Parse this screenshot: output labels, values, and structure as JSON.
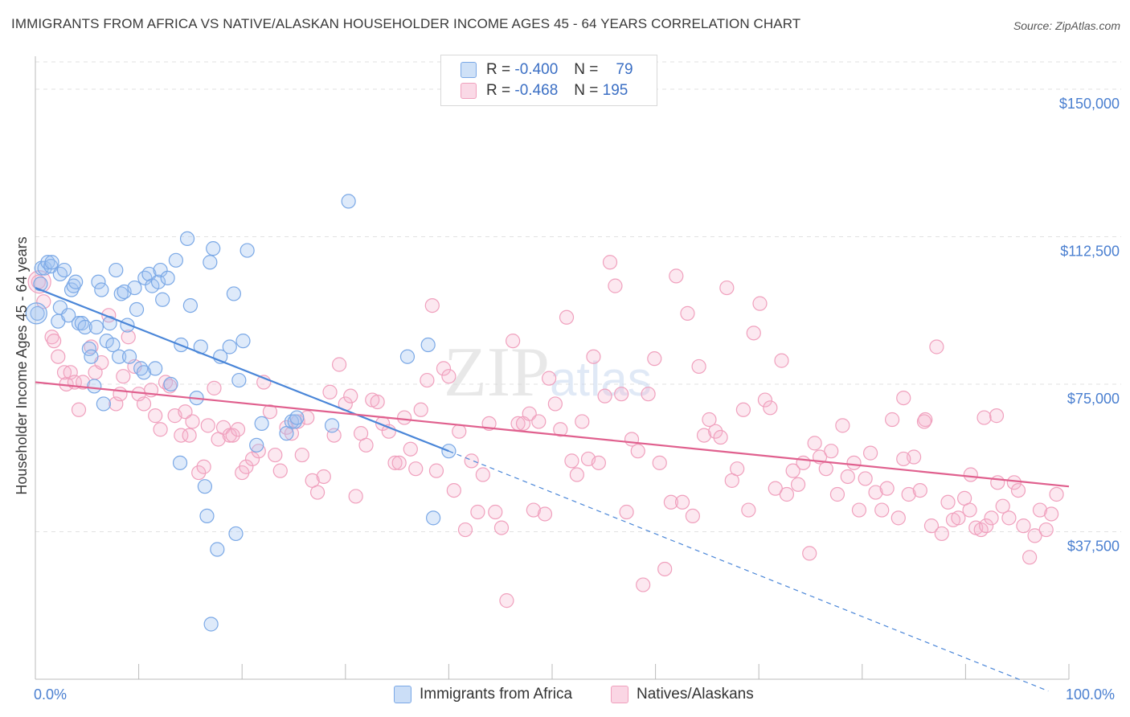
{
  "title": "IMMIGRANTS FROM AFRICA VS NATIVE/ALASKAN HOUSEHOLDER INCOME AGES 45 - 64 YEARS CORRELATION CHART",
  "source": "Source: ZipAtlas.com",
  "watermark": "ZIPatlas",
  "legend": {
    "rows": [
      {
        "r_label": "R =",
        "r_value": "-0.400",
        "n_label": "N =",
        "n_value": "79"
      },
      {
        "r_label": "R =",
        "r_value": "-0.468",
        "n_label": "N =",
        "n_value": "195"
      }
    ]
  },
  "colors": {
    "blue": "#4a86d8",
    "blue_fill": "rgba(160,195,240,0.35)",
    "blue_stroke": "#7aa8e6",
    "pink": "#e0608e",
    "pink_fill": "rgba(245,180,205,0.30)",
    "pink_stroke": "#f0a0bd",
    "tick_text": "#4a7fd0",
    "grid": "#e2e2e2"
  },
  "chart_data": {
    "type": "scatter",
    "title": "IMMIGRANTS FROM AFRICA VS NATIVE/ALASKAN HOUSEHOLDER INCOME AGES 45 - 64 YEARS CORRELATION CHART",
    "xlabel": "",
    "ylabel": "Householder Income Ages 45 - 64 years",
    "xlim": [
      0,
      100
    ],
    "ylim": [
      0,
      160000
    ],
    "x_tick_labels": [
      "0.0%",
      "100.0%"
    ],
    "y_ticks": [
      37500,
      75000,
      112500,
      150000
    ],
    "y_tick_labels": [
      "$37,500",
      "$75,000",
      "$112,500",
      "$150,000"
    ],
    "grid": true,
    "legend_position": "top-center",
    "series": [
      {
        "name": "Immigrants from Africa",
        "color": "#4a86d8",
        "trend": {
          "x0": 0,
          "y0": 99500,
          "x1": 40,
          "y1": 58000,
          "dashed_to_x": 98,
          "dashed_to_y": -3000
        },
        "points": [
          [
            0.2,
            93000
          ],
          [
            0.5,
            100500
          ],
          [
            0.6,
            104500
          ],
          [
            0.9,
            104500
          ],
          [
            1.2,
            106000
          ],
          [
            1.5,
            105000
          ],
          [
            1.6,
            106000
          ],
          [
            2.2,
            91000
          ],
          [
            2.4,
            94500
          ],
          [
            2.4,
            103000
          ],
          [
            2.8,
            104000
          ],
          [
            3.2,
            92500
          ],
          [
            3.5,
            99000
          ],
          [
            3.7,
            100000
          ],
          [
            3.9,
            101000
          ],
          [
            4.2,
            90500
          ],
          [
            4.5,
            90500
          ],
          [
            4.8,
            89500
          ],
          [
            5.2,
            84000
          ],
          [
            5.4,
            82000
          ],
          [
            5.7,
            74500
          ],
          [
            5.9,
            89500
          ],
          [
            6.1,
            101000
          ],
          [
            6.4,
            99000
          ],
          [
            6.6,
            70000
          ],
          [
            6.9,
            86000
          ],
          [
            7.2,
            90500
          ],
          [
            7.5,
            85000
          ],
          [
            7.8,
            104000
          ],
          [
            8.1,
            82000
          ],
          [
            8.3,
            98000
          ],
          [
            8.6,
            98500
          ],
          [
            8.9,
            90000
          ],
          [
            9.1,
            82000
          ],
          [
            9.6,
            99500
          ],
          [
            9.8,
            94000
          ],
          [
            10.2,
            79000
          ],
          [
            10.5,
            78000
          ],
          [
            10.6,
            102000
          ],
          [
            11.0,
            103000
          ],
          [
            11.3,
            100000
          ],
          [
            11.6,
            79000
          ],
          [
            11.9,
            101000
          ],
          [
            12.1,
            104000
          ],
          [
            12.3,
            96500
          ],
          [
            12.8,
            102000
          ],
          [
            13.1,
            75000
          ],
          [
            13.6,
            106500
          ],
          [
            14.0,
            55000
          ],
          [
            14.1,
            85000
          ],
          [
            14.7,
            112000
          ],
          [
            15.0,
            95000
          ],
          [
            15.6,
            71500
          ],
          [
            16.0,
            84500
          ],
          [
            16.4,
            49000
          ],
          [
            16.6,
            41500
          ],
          [
            16.9,
            106000
          ],
          [
            17.0,
            14000
          ],
          [
            17.2,
            109500
          ],
          [
            17.6,
            33000
          ],
          [
            17.9,
            82000
          ],
          [
            18.8,
            84500
          ],
          [
            19.2,
            98000
          ],
          [
            19.4,
            37000
          ],
          [
            19.7,
            76000
          ],
          [
            20.1,
            86000
          ],
          [
            20.5,
            109000
          ],
          [
            21.4,
            59500
          ],
          [
            21.9,
            65000
          ],
          [
            24.3,
            62500
          ],
          [
            24.8,
            65500
          ],
          [
            25.1,
            65500
          ],
          [
            25.3,
            66500
          ],
          [
            28.7,
            64500
          ],
          [
            30.3,
            121500
          ],
          [
            36.0,
            82000
          ],
          [
            38.0,
            85000
          ],
          [
            38.5,
            41000
          ],
          [
            40.0,
            58000
          ]
        ]
      },
      {
        "name": "Natives/Alaskans",
        "color": "#e0608e",
        "trend": {
          "x0": 0,
          "y0": 75500,
          "x1": 100,
          "y1": 49000
        },
        "points": [
          [
            0.3,
            101000
          ],
          [
            0.8,
            96000
          ],
          [
            1.6,
            87000
          ],
          [
            1.8,
            86000
          ],
          [
            2.2,
            82000
          ],
          [
            2.8,
            78000
          ],
          [
            3.0,
            75000
          ],
          [
            3.4,
            78000
          ],
          [
            3.8,
            75500
          ],
          [
            4.2,
            68500
          ],
          [
            4.6,
            75500
          ],
          [
            5.4,
            84500
          ],
          [
            5.8,
            78000
          ],
          [
            6.4,
            80500
          ],
          [
            7.1,
            92500
          ],
          [
            7.8,
            70000
          ],
          [
            8.2,
            72500
          ],
          [
            8.5,
            77000
          ],
          [
            9.0,
            87000
          ],
          [
            9.6,
            79500
          ],
          [
            10.0,
            72500
          ],
          [
            10.5,
            70000
          ],
          [
            11.2,
            73500
          ],
          [
            11.6,
            67000
          ],
          [
            12.1,
            63500
          ],
          [
            12.6,
            75500
          ],
          [
            13.0,
            74500
          ],
          [
            13.5,
            67000
          ],
          [
            14.1,
            62000
          ],
          [
            14.5,
            68000
          ],
          [
            14.9,
            62000
          ],
          [
            15.2,
            65500
          ],
          [
            15.8,
            52500
          ],
          [
            16.3,
            54000
          ],
          [
            16.7,
            64500
          ],
          [
            17.3,
            74000
          ],
          [
            17.7,
            61000
          ],
          [
            18.2,
            64000
          ],
          [
            18.8,
            62000
          ],
          [
            19.1,
            62000
          ],
          [
            19.6,
            63500
          ],
          [
            20.0,
            52500
          ],
          [
            20.4,
            54000
          ],
          [
            21.0,
            56000
          ],
          [
            21.6,
            58000
          ],
          [
            22.1,
            75500
          ],
          [
            22.7,
            68000
          ],
          [
            23.2,
            57000
          ],
          [
            23.7,
            53000
          ],
          [
            24.3,
            64000
          ],
          [
            24.8,
            62500
          ],
          [
            25.4,
            65500
          ],
          [
            25.8,
            57000
          ],
          [
            26.3,
            66500
          ],
          [
            26.8,
            50500
          ],
          [
            27.3,
            47500
          ],
          [
            27.9,
            51500
          ],
          [
            28.5,
            73000
          ],
          [
            28.9,
            62000
          ],
          [
            29.4,
            80000
          ],
          [
            30.0,
            70000
          ],
          [
            30.5,
            72000
          ],
          [
            31.0,
            46500
          ],
          [
            31.5,
            62500
          ],
          [
            32.0,
            59500
          ],
          [
            32.6,
            71000
          ],
          [
            33.1,
            70500
          ],
          [
            33.6,
            65000
          ],
          [
            34.2,
            63000
          ],
          [
            34.8,
            55000
          ],
          [
            35.2,
            55000
          ],
          [
            35.7,
            66500
          ],
          [
            36.3,
            58500
          ],
          [
            36.8,
            53500
          ],
          [
            37.3,
            68500
          ],
          [
            37.9,
            76000
          ],
          [
            38.4,
            95000
          ],
          [
            38.8,
            53000
          ],
          [
            39.5,
            79000
          ],
          [
            40.0,
            77000
          ],
          [
            40.5,
            48000
          ],
          [
            41.0,
            63000
          ],
          [
            41.6,
            38000
          ],
          [
            42.2,
            55500
          ],
          [
            42.8,
            42500
          ],
          [
            43.3,
            52000
          ],
          [
            43.9,
            65000
          ],
          [
            44.5,
            42500
          ],
          [
            45.1,
            38500
          ],
          [
            45.6,
            20000
          ],
          [
            46.2,
            86000
          ],
          [
            46.7,
            65000
          ],
          [
            47.2,
            65000
          ],
          [
            47.8,
            67500
          ],
          [
            48.2,
            43000
          ],
          [
            48.7,
            65500
          ],
          [
            49.3,
            42000
          ],
          [
            49.7,
            76500
          ],
          [
            50.3,
            70000
          ],
          [
            50.8,
            63500
          ],
          [
            51.4,
            92000
          ],
          [
            51.9,
            55500
          ],
          [
            52.4,
            52000
          ],
          [
            52.9,
            65500
          ],
          [
            53.5,
            56000
          ],
          [
            54.0,
            82000
          ],
          [
            54.5,
            55000
          ],
          [
            55.1,
            72000
          ],
          [
            55.6,
            106000
          ],
          [
            56.1,
            100000
          ],
          [
            56.7,
            72500
          ],
          [
            57.2,
            42500
          ],
          [
            57.7,
            61000
          ],
          [
            58.3,
            58000
          ],
          [
            58.8,
            24000
          ],
          [
            59.3,
            72500
          ],
          [
            59.9,
            81500
          ],
          [
            60.4,
            55000
          ],
          [
            60.9,
            28000
          ],
          [
            61.5,
            45000
          ],
          [
            62.0,
            102500
          ],
          [
            62.6,
            45000
          ],
          [
            63.1,
            93000
          ],
          [
            63.6,
            41500
          ],
          [
            64.2,
            79500
          ],
          [
            64.7,
            62000
          ],
          [
            65.2,
            66000
          ],
          [
            65.8,
            63000
          ],
          [
            66.3,
            61500
          ],
          [
            66.9,
            99500
          ],
          [
            67.4,
            50500
          ],
          [
            67.9,
            53500
          ],
          [
            68.5,
            68500
          ],
          [
            69.0,
            43000
          ],
          [
            69.5,
            88000
          ],
          [
            70.1,
            95500
          ],
          [
            70.6,
            71000
          ],
          [
            71.1,
            69000
          ],
          [
            71.6,
            48500
          ],
          [
            72.2,
            81000
          ],
          [
            72.7,
            47000
          ],
          [
            73.3,
            53000
          ],
          [
            73.8,
            49500
          ],
          [
            74.3,
            55000
          ],
          [
            74.9,
            32000
          ],
          [
            75.4,
            60000
          ],
          [
            75.9,
            56500
          ],
          [
            76.5,
            53500
          ],
          [
            77.0,
            58000
          ],
          [
            77.6,
            47000
          ],
          [
            78.1,
            64500
          ],
          [
            78.6,
            51500
          ],
          [
            79.2,
            55000
          ],
          [
            79.7,
            43000
          ],
          [
            80.3,
            51000
          ],
          [
            80.8,
            57500
          ],
          [
            81.3,
            47500
          ],
          [
            81.9,
            43000
          ],
          [
            82.4,
            48500
          ],
          [
            82.9,
            66000
          ],
          [
            83.5,
            41000
          ],
          [
            84.0,
            71500
          ],
          [
            84.5,
            47000
          ],
          [
            85.0,
            56500
          ],
          [
            85.6,
            48000
          ],
          [
            86.1,
            66000
          ],
          [
            86.7,
            39000
          ],
          [
            87.2,
            84500
          ],
          [
            87.7,
            37000
          ],
          [
            88.3,
            45000
          ],
          [
            88.8,
            40500
          ],
          [
            89.3,
            41000
          ],
          [
            89.9,
            46000
          ],
          [
            90.4,
            43000
          ],
          [
            91.0,
            38500
          ],
          [
            91.5,
            38000
          ],
          [
            92.0,
            39000
          ],
          [
            92.5,
            41000
          ],
          [
            93.1,
            50000
          ],
          [
            93.6,
            44000
          ],
          [
            94.2,
            41000
          ],
          [
            94.7,
            50000
          ],
          [
            95.1,
            48000
          ],
          [
            95.6,
            39000
          ],
          [
            96.2,
            31000
          ],
          [
            96.7,
            36500
          ],
          [
            97.2,
            43000
          ],
          [
            97.8,
            38000
          ],
          [
            98.3,
            42000
          ],
          [
            98.8,
            47000
          ],
          [
            93.0,
            67000
          ],
          [
            91.8,
            66500
          ],
          [
            90.5,
            52000
          ],
          [
            86.0,
            65500
          ],
          [
            84.0,
            56000
          ]
        ]
      }
    ]
  },
  "bottom_legend": [
    {
      "label": "Immigrants from Africa"
    },
    {
      "label": "Natives/Alaskans"
    }
  ]
}
